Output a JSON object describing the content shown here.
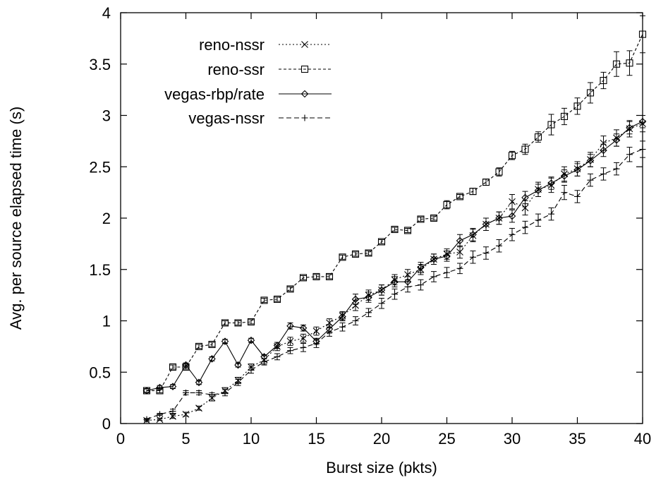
{
  "chart_data": {
    "type": "line",
    "title": "",
    "xlabel": "Burst size (pkts)",
    "ylabel": "Avg. per source elapsed time (s)",
    "xlim": [
      0,
      40
    ],
    "ylim": [
      0,
      4
    ],
    "xticks": [
      0,
      5,
      10,
      15,
      20,
      25,
      30,
      35,
      40
    ],
    "yticks": [
      0,
      0.5,
      1,
      1.5,
      2,
      2.5,
      3,
      3.5,
      4
    ],
    "xtick_labels": [
      "0",
      "5",
      "10",
      "15",
      "20",
      "25",
      "30",
      "35",
      "40"
    ],
    "ytick_labels": [
      "0",
      "0.5",
      "1",
      "1.5",
      "2",
      "2.5",
      "3",
      "3.5",
      "4"
    ],
    "grid": false,
    "legend_position": "top-left",
    "x": [
      2,
      3,
      4,
      5,
      6,
      7,
      8,
      9,
      10,
      11,
      12,
      13,
      14,
      15,
      16,
      17,
      18,
      19,
      20,
      21,
      22,
      23,
      24,
      25,
      26,
      27,
      28,
      29,
      30,
      31,
      32,
      33,
      34,
      35,
      36,
      37,
      38,
      39,
      40
    ],
    "series": [
      {
        "name": "reno-nssr",
        "marker": "x",
        "dash": "2,3",
        "values": [
          0.03,
          0.04,
          0.07,
          0.09,
          0.15,
          0.25,
          0.32,
          0.42,
          0.55,
          0.62,
          0.75,
          0.8,
          0.83,
          0.9,
          0.98,
          1.05,
          1.15,
          1.25,
          1.3,
          1.4,
          1.45,
          1.5,
          1.6,
          1.65,
          1.67,
          1.83,
          1.94,
          2.0,
          2.16,
          2.1,
          2.28,
          2.32,
          2.43,
          2.48,
          2.57,
          2.73,
          2.78,
          2.87,
          2.92
        ],
        "errors": [
          0.01,
          0.01,
          0.02,
          0.02,
          0.02,
          0.03,
          0.03,
          0.03,
          0.03,
          0.04,
          0.04,
          0.04,
          0.04,
          0.04,
          0.04,
          0.04,
          0.05,
          0.05,
          0.05,
          0.05,
          0.05,
          0.05,
          0.05,
          0.05,
          0.06,
          0.06,
          0.06,
          0.06,
          0.07,
          0.07,
          0.07,
          0.07,
          0.07,
          0.07,
          0.07,
          0.07,
          0.08,
          0.08,
          0.08
        ]
      },
      {
        "name": "reno-ssr",
        "marker": "square",
        "dash": "4,3",
        "values": [
          0.32,
          0.32,
          0.55,
          0.55,
          0.75,
          0.77,
          0.98,
          0.98,
          0.99,
          1.2,
          1.21,
          1.31,
          1.42,
          1.43,
          1.43,
          1.62,
          1.65,
          1.66,
          1.77,
          1.89,
          1.88,
          1.99,
          2.0,
          2.13,
          2.21,
          2.26,
          2.35,
          2.45,
          2.61,
          2.67,
          2.79,
          2.91,
          2.99,
          3.09,
          3.22,
          3.34,
          3.5,
          3.51,
          3.79
        ],
        "errors": [
          0.02,
          0.02,
          0.02,
          0.02,
          0.02,
          0.02,
          0.02,
          0.02,
          0.02,
          0.02,
          0.02,
          0.02,
          0.02,
          0.02,
          0.02,
          0.02,
          0.02,
          0.02,
          0.02,
          0.02,
          0.02,
          0.02,
          0.02,
          0.04,
          0.02,
          0.03,
          0.03,
          0.04,
          0.04,
          0.05,
          0.05,
          0.1,
          0.08,
          0.08,
          0.1,
          0.08,
          0.12,
          0.12,
          0.18
        ]
      },
      {
        "name": "vegas-rbp/rate",
        "marker": "diamond",
        "dash": "",
        "values": [
          0.32,
          0.35,
          0.36,
          0.57,
          0.4,
          0.63,
          0.8,
          0.57,
          0.81,
          0.65,
          0.76,
          0.95,
          0.93,
          0.8,
          0.92,
          1.04,
          1.21,
          1.23,
          1.3,
          1.38,
          1.38,
          1.52,
          1.6,
          1.63,
          1.78,
          1.84,
          1.94,
          2.0,
          2.02,
          2.2,
          2.27,
          2.34,
          2.41,
          2.47,
          2.56,
          2.66,
          2.76,
          2.88,
          2.94
        ],
        "errors": [
          0.02,
          0.02,
          0.02,
          0.02,
          0.02,
          0.02,
          0.02,
          0.02,
          0.02,
          0.02,
          0.03,
          0.03,
          0.03,
          0.03,
          0.04,
          0.04,
          0.05,
          0.05,
          0.05,
          0.05,
          0.05,
          0.05,
          0.05,
          0.05,
          0.06,
          0.06,
          0.06,
          0.06,
          0.06,
          0.06,
          0.06,
          0.06,
          0.06,
          0.06,
          0.06,
          0.06,
          0.06,
          0.06,
          0.06
        ]
      },
      {
        "name": "vegas-nssr",
        "marker": "plus",
        "dash": "7,4",
        "values": [
          0.04,
          0.09,
          0.12,
          0.3,
          0.3,
          0.28,
          0.3,
          0.4,
          0.52,
          0.6,
          0.65,
          0.71,
          0.74,
          0.78,
          0.89,
          0.94,
          1.0,
          1.08,
          1.17,
          1.26,
          1.33,
          1.35,
          1.43,
          1.47,
          1.51,
          1.62,
          1.66,
          1.73,
          1.84,
          1.91,
          1.98,
          2.04,
          2.25,
          2.21,
          2.37,
          2.43,
          2.48,
          2.62,
          2.67
        ],
        "errors": [
          0.01,
          0.01,
          0.02,
          0.02,
          0.02,
          0.02,
          0.03,
          0.03,
          0.03,
          0.03,
          0.03,
          0.03,
          0.04,
          0.04,
          0.04,
          0.04,
          0.04,
          0.04,
          0.05,
          0.05,
          0.05,
          0.05,
          0.05,
          0.05,
          0.05,
          0.06,
          0.06,
          0.06,
          0.06,
          0.06,
          0.06,
          0.06,
          0.07,
          0.06,
          0.06,
          0.06,
          0.06,
          0.07,
          0.08
        ]
      }
    ]
  }
}
